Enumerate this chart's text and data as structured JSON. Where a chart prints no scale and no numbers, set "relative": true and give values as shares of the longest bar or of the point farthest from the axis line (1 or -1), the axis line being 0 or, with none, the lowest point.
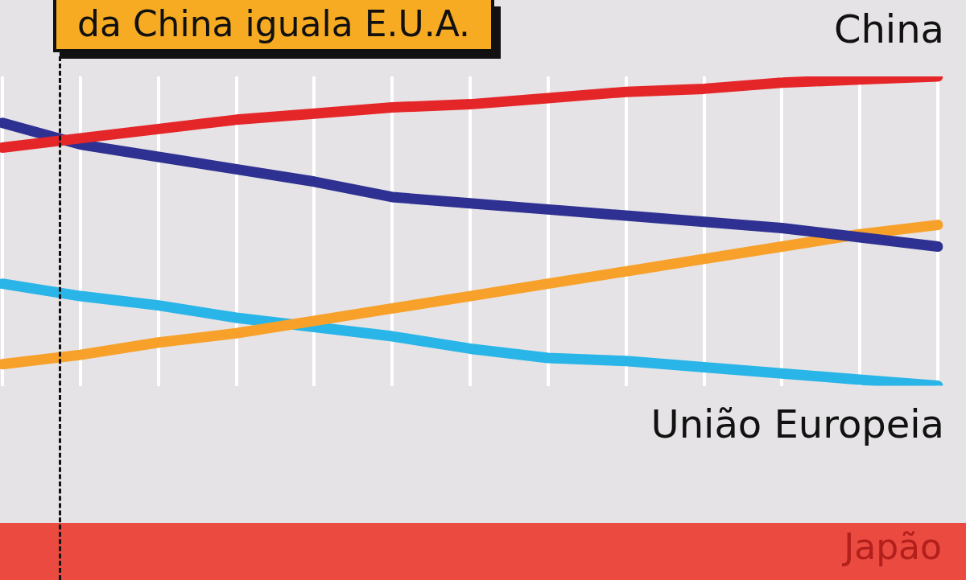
{
  "chart_data": {
    "type": "line",
    "title": "da China iguala E.U.A.",
    "relative": true,
    "grid": "x",
    "legend": false,
    "marker": "none",
    "line_style": "solid",
    "categories": [
      null,
      null,
      null,
      null,
      null,
      null,
      null,
      null,
      null,
      null,
      null,
      null,
      null
    ],
    "series": [
      {
        "name": "China",
        "color": "#e52629",
        "values": [
          0.77,
          0.8,
          0.83,
          0.86,
          0.88,
          0.9,
          0.91,
          0.93,
          0.95,
          0.96,
          0.98,
          0.99,
          1
        ]
      },
      {
        "color": "#2e3192",
        "values": [
          0.85,
          0.78,
          0.74,
          0.7,
          0.66,
          0.61,
          0.59,
          0.57,
          0.55,
          0.53,
          0.51,
          0.48,
          0.45
        ]
      },
      {
        "color": "#f7a12b",
        "values": [
          0.07,
          0.1,
          0.14,
          0.17,
          0.21,
          0.25,
          0.29,
          0.33,
          0.37,
          0.41,
          0.45,
          0.49,
          0.52
        ]
      },
      {
        "name": "União Europeia",
        "color": "#29b5e8",
        "values": [
          0.33,
          0.29,
          0.26,
          0.22,
          0.19,
          0.16,
          0.12,
          0.09,
          0.08,
          0.06,
          0.04,
          0.02,
          0
        ]
      }
    ],
    "annotations": [
      "Japão"
    ]
  }
}
